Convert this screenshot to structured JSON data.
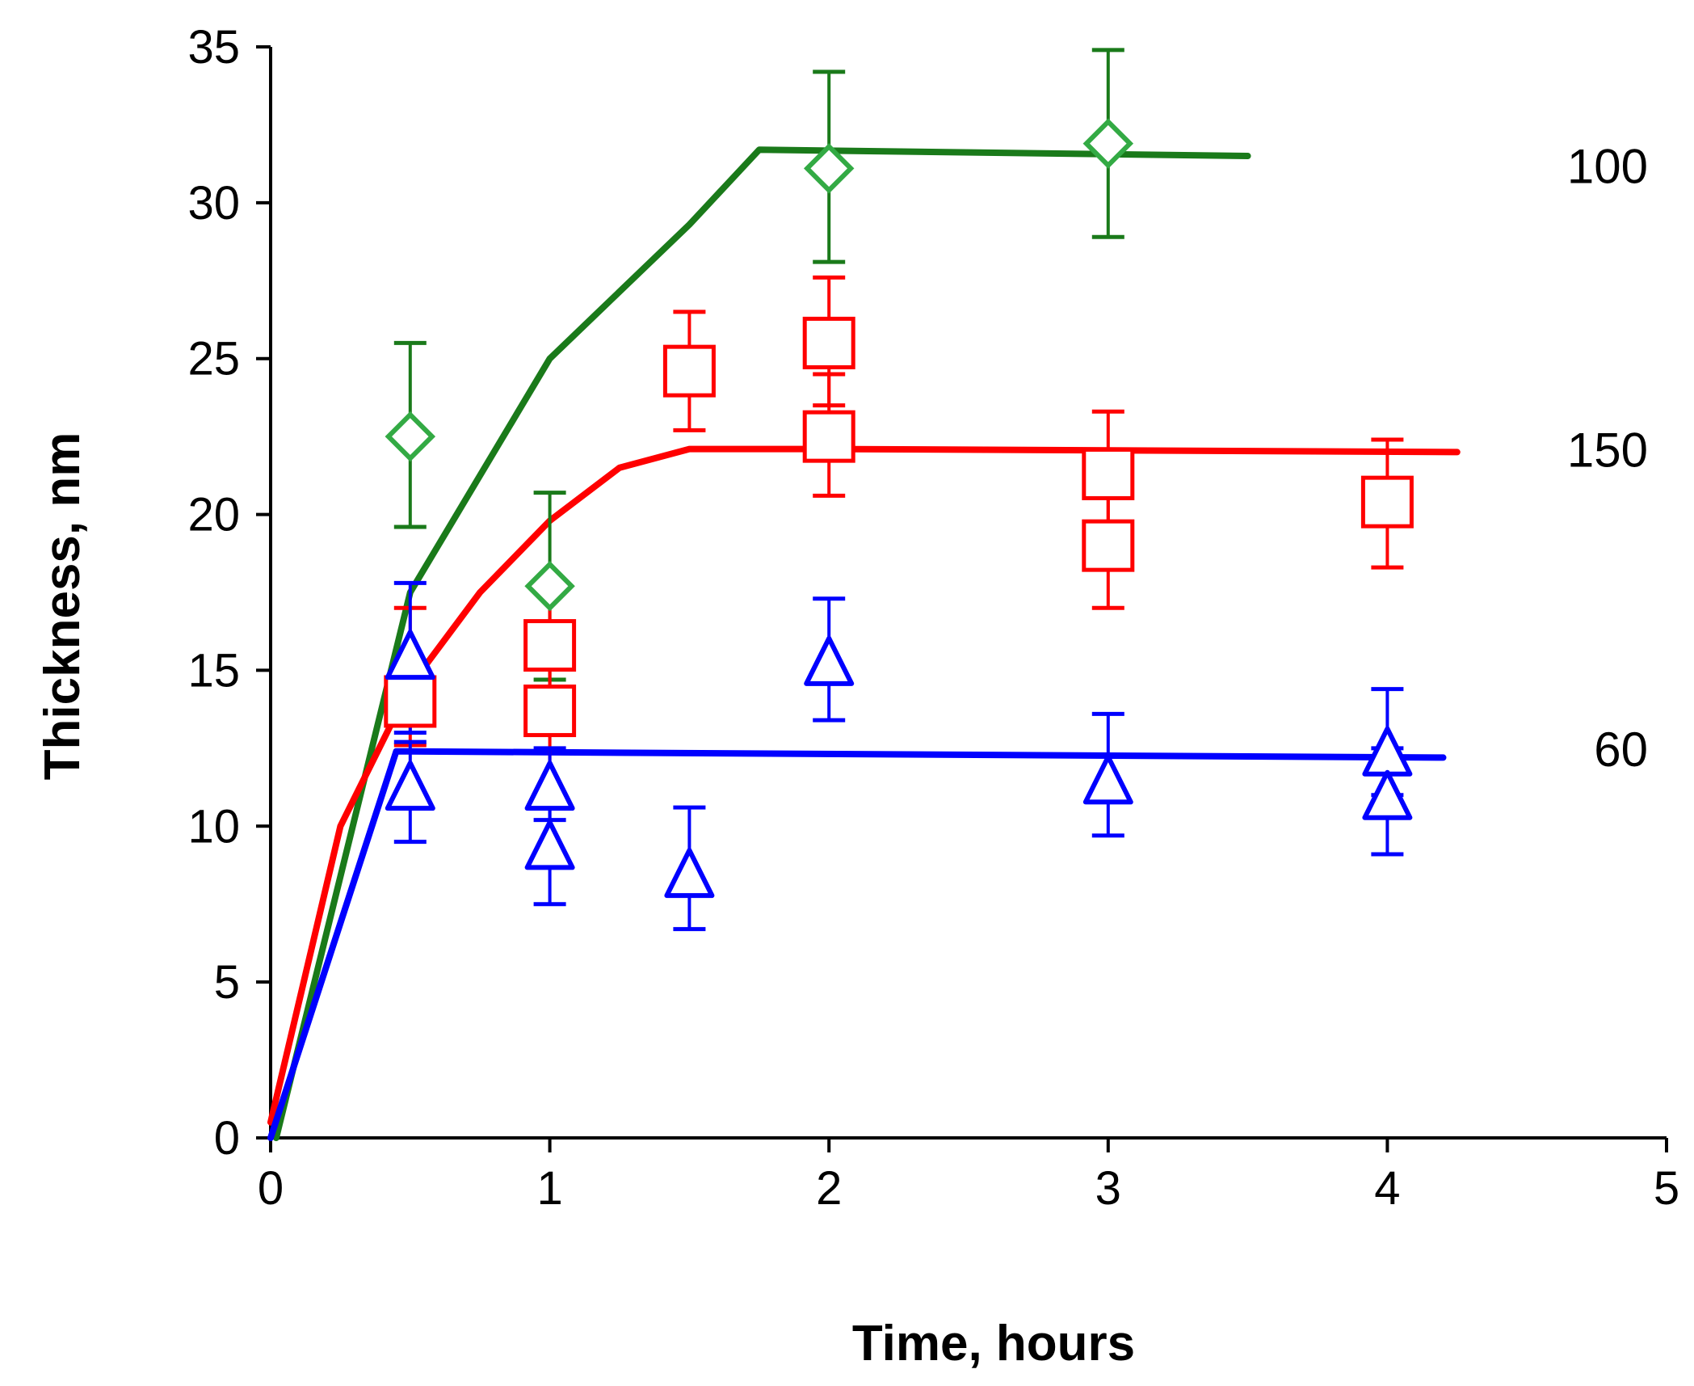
{
  "chart_data": {
    "type": "scatter",
    "title": "",
    "xlabel": "Time, hours",
    "ylabel": "Thickness, nm",
    "xlim": [
      0,
      5
    ],
    "ylim": [
      0,
      35
    ],
    "xticks": [
      "0",
      "1",
      "2",
      "3",
      "4",
      "5"
    ],
    "yticks": [
      "0",
      "5",
      "10",
      "15",
      "20",
      "25",
      "30",
      "35"
    ],
    "grid": false,
    "legend": "none",
    "series": [
      {
        "name": "100",
        "color": "#1a7a1a",
        "marker_color": "#33aa44",
        "marker": "diamond",
        "points": [
          {
            "x": 0.5,
            "y": 22.5,
            "err_low": 19.6,
            "err_high": 25.5
          },
          {
            "x": 1.0,
            "y": 17.7,
            "err_low": 14.7,
            "err_high": 20.7
          },
          {
            "x": 2.0,
            "y": 31.1,
            "err_low": 28.1,
            "err_high": 34.2
          },
          {
            "x": 3.0,
            "y": 31.9,
            "err_low": 28.9,
            "err_high": 34.9
          }
        ],
        "fit": [
          [
            0.02,
            0
          ],
          [
            0.5,
            17.5
          ],
          [
            1.0,
            25.0
          ],
          [
            1.5,
            29.3
          ],
          [
            1.75,
            31.7
          ],
          [
            3.5,
            31.5
          ]
        ]
      },
      {
        "name": "150",
        "color": "#ff0000",
        "marker_color": "#ff0000",
        "marker": "square",
        "points": [
          {
            "x": 0.5,
            "y": 14.0,
            "err_low": 12.6,
            "err_high": 17.0
          },
          {
            "x": 1.0,
            "y": 15.8,
            "err_low": 13.0,
            "err_high": 17.5
          },
          {
            "x": 1.0,
            "y": 13.7,
            "err_low": 10.6,
            "err_high": 15.5
          },
          {
            "x": 1.5,
            "y": 24.6,
            "err_low": 22.7,
            "err_high": 26.5
          },
          {
            "x": 2.0,
            "y": 25.5,
            "err_low": 23.5,
            "err_high": 27.6
          },
          {
            "x": 2.0,
            "y": 22.5,
            "err_low": 20.6,
            "err_high": 24.5
          },
          {
            "x": 3.0,
            "y": 21.3,
            "err_low": 19.3,
            "err_high": 23.3
          },
          {
            "x": 3.0,
            "y": 19.0,
            "err_low": 17.0,
            "err_high": 21.1
          },
          {
            "x": 4.0,
            "y": 20.4,
            "err_low": 18.3,
            "err_high": 22.4
          }
        ],
        "fit": [
          [
            0.0,
            0.5
          ],
          [
            0.25,
            10.0
          ],
          [
            0.5,
            14.5
          ],
          [
            0.75,
            17.5
          ],
          [
            1.0,
            19.8
          ],
          [
            1.25,
            21.5
          ],
          [
            1.5,
            22.1
          ],
          [
            2.0,
            22.1
          ],
          [
            4.25,
            22.0
          ]
        ]
      },
      {
        "name": "60",
        "color": "#0000ff",
        "marker_color": "#0000ff",
        "marker": "triangle",
        "points": [
          {
            "x": 0.5,
            "y": 15.5,
            "err_low": 13.0,
            "err_high": 17.8
          },
          {
            "x": 0.5,
            "y": 11.3,
            "err_low": 9.5,
            "err_high": 12.7
          },
          {
            "x": 1.0,
            "y": 11.3,
            "err_low": 10.2,
            "err_high": 12.5
          },
          {
            "x": 1.0,
            "y": 9.4,
            "err_low": 7.5,
            "err_high": 10.8
          },
          {
            "x": 1.5,
            "y": 8.5,
            "err_low": 6.7,
            "err_high": 10.6
          },
          {
            "x": 2.0,
            "y": 15.3,
            "err_low": 13.4,
            "err_high": 17.3
          },
          {
            "x": 3.0,
            "y": 11.5,
            "err_low": 9.7,
            "err_high": 13.6
          },
          {
            "x": 4.0,
            "y": 12.4,
            "err_low": 11.0,
            "err_high": 14.4
          },
          {
            "x": 4.0,
            "y": 11.0,
            "err_low": 9.1,
            "err_high": 12.5
          }
        ],
        "fit": [
          [
            0.0,
            0
          ],
          [
            0.45,
            12.4
          ],
          [
            4.2,
            12.2
          ]
        ]
      }
    ]
  }
}
